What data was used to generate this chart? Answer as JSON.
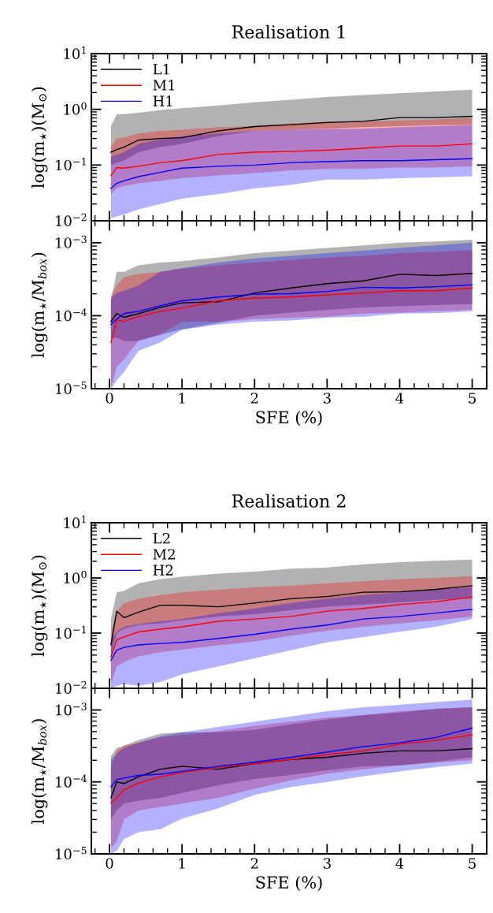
{
  "chart_data": [
    {
      "type": "line",
      "title": "Realisation 1",
      "ylabel": "log(m$_{⋆}$)(M$_{⊙}$)",
      "log": "y",
      "legend": "upper left",
      "tick_labels": "y",
      "xlim": [
        -0.25,
        5.2
      ],
      "xticks": [
        0,
        1,
        2,
        3,
        4,
        5
      ],
      "ylim": [
        0.01,
        10
      ],
      "yticks": [
        {
          "value": 0.01,
          "label": "10$^{−2}$"
        },
        {
          "value": 0.1,
          "label": "10$^{−1}$"
        },
        {
          "value": 1,
          "label": "10$^{0}$"
        },
        {
          "value": 10,
          "label": "10$^{1}$"
        }
      ],
      "x": [
        0.02,
        0.1,
        0.2,
        0.4,
        0.7,
        1,
        1.5,
        2,
        2.5,
        3,
        3.5,
        4,
        4.5,
        5
      ],
      "series": [
        {
          "name": "L1",
          "color": "#000000",
          "values": [
            0.17,
            0.19,
            0.21,
            0.28,
            0.3,
            0.31,
            0.41,
            0.49,
            0.53,
            0.58,
            0.61,
            0.71,
            0.71,
            0.75
          ],
          "lower": [
            0.1,
            0.11,
            0.12,
            0.17,
            0.21,
            0.24,
            0.33,
            0.41,
            0.43,
            0.45,
            0.48,
            0.5,
            0.52,
            0.53
          ],
          "upper": [
            0.5,
            0.82,
            0.82,
            0.87,
            0.97,
            1.05,
            1.17,
            1.34,
            1.49,
            1.66,
            1.81,
            1.95,
            2.1,
            2.25
          ]
        },
        {
          "name": "M1",
          "color": "#ff0000",
          "values": [
            0.065,
            0.09,
            0.088,
            0.095,
            0.11,
            0.12,
            0.155,
            0.17,
            0.175,
            0.185,
            0.2,
            0.22,
            0.22,
            0.24
          ],
          "lower": [
            0.03,
            0.038,
            0.042,
            0.047,
            0.052,
            0.058,
            0.065,
            0.072,
            0.08,
            0.085,
            0.085,
            0.09,
            0.09,
            0.095
          ],
          "upper": [
            0.21,
            0.3,
            0.31,
            0.37,
            0.41,
            0.43,
            0.48,
            0.5,
            0.56,
            0.6,
            0.61,
            0.63,
            0.66,
            0.7
          ]
        },
        {
          "name": "H1",
          "color": "#0000ff",
          "values": [
            0.038,
            0.047,
            0.052,
            0.062,
            0.074,
            0.088,
            0.095,
            0.1,
            0.11,
            0.115,
            0.12,
            0.12,
            0.125,
            0.13
          ],
          "lower": [
            0.011,
            0.012,
            0.013,
            0.016,
            0.02,
            0.025,
            0.03,
            0.038,
            0.044,
            0.055,
            0.055,
            0.058,
            0.06,
            0.063
          ],
          "upper": [
            0.14,
            0.155,
            0.17,
            0.24,
            0.29,
            0.33,
            0.37,
            0.41,
            0.43,
            0.44,
            0.45,
            0.48,
            0.5,
            0.52
          ]
        }
      ]
    },
    {
      "type": "line",
      "xlabel": "SFE (%)",
      "ylabel": "log(m$_{⋆}$/M$_{box}$)",
      "log": "y",
      "xlim": [
        -0.25,
        5.2
      ],
      "xticks": [
        0,
        1,
        2,
        3,
        4,
        5
      ],
      "ylim": [
        1e-05,
        0.002
      ],
      "yticks": [
        {
          "value": 1e-05,
          "label": "10$^{−5}$"
        },
        {
          "value": 0.0001,
          "label": "10$^{−4}$"
        },
        {
          "value": 0.001,
          "label": "10$^{−3}$"
        }
      ],
      "x": [
        0.02,
        0.1,
        0.2,
        0.4,
        0.7,
        1,
        1.5,
        2,
        2.5,
        3,
        3.5,
        4,
        4.5,
        5
      ],
      "series": [
        {
          "color": "#000000",
          "values": [
            8.3e-05,
            0.000107,
            9.5e-05,
            0.000107,
            0.00013,
            0.00015,
            0.000155,
            0.000205,
            0.00024,
            0.000275,
            0.0003,
            0.00037,
            0.000355,
            0.00038
          ],
          "lower": [
            5e-05,
            5e-05,
            4.5e-05,
            4.5e-05,
            5.5e-05,
            6.5e-05,
            8e-05,
            0.0001,
            0.00011,
            0.00012,
            0.00013,
            0.000135,
            0.00014,
            0.000145
          ],
          "upper": [
            0.00016,
            0.0004,
            0.0004,
            0.00049,
            0.000535,
            0.00056,
            0.00063,
            0.00072,
            0.00078,
            0.00085,
            0.00092,
            0.001,
            0.00104,
            0.0011
          ]
        },
        {
          "color": "#ff0000",
          "values": [
            4.3e-05,
            8.7e-05,
            8.4e-05,
            9.7e-05,
            0.000115,
            0.000127,
            0.00016,
            0.000175,
            0.00018,
            0.000193,
            0.000205,
            0.00022,
            0.00022,
            0.00024
          ],
          "lower": [
            1e-05,
            2e-05,
            2.5e-05,
            4.6e-05,
            5.5e-05,
            8.3e-05,
            8.3e-05,
            9e-05,
            9.4e-05,
            9.7e-05,
            0.000107,
            0.00011,
            0.000115,
            0.00012
          ],
          "upper": [
            0.00019,
            0.00026,
            0.00034,
            0.00037,
            0.0004,
            0.00044,
            0.00049,
            0.000535,
            0.00058,
            0.00063,
            0.00066,
            0.00072,
            0.00075,
            0.00079
          ]
        },
        {
          "color": "#0000ff",
          "values": [
            7.6e-05,
            9e-05,
            0.000107,
            0.000115,
            0.000137,
            0.00016,
            0.00018,
            0.000197,
            0.0002,
            0.000215,
            0.000245,
            0.00024,
            0.00025,
            0.000265
          ],
          "lower": [
            1e-05,
            1.3e-05,
            1.7e-05,
            3.3e-05,
            4.3e-05,
            6.4e-05,
            7.6e-05,
            8.3e-05,
            8.6e-05,
            9.4e-05,
            9.7e-05,
            0.000107,
            0.000108,
            0.000115
          ],
          "upper": [
            0.000175,
            0.000205,
            0.00022,
            0.00026,
            0.0004,
            0.00045,
            0.000535,
            0.00061,
            0.00066,
            0.00072,
            0.00078,
            0.00085,
            0.00092,
            0.001
          ]
        }
      ]
    },
    {
      "type": "line",
      "title": "Realisation 2",
      "ylabel": "log(m$_{⋆}$)(M$_{⊙}$)",
      "log": "y",
      "legend": "upper left",
      "tick_labels": "y",
      "xlim": [
        -0.25,
        5.2
      ],
      "xticks": [
        0,
        1,
        2,
        3,
        4,
        5
      ],
      "ylim": [
        0.01,
        10
      ],
      "yticks": [
        {
          "value": 0.01,
          "label": "10$^{−2}$"
        },
        {
          "value": 0.1,
          "label": "10$^{−1}$"
        },
        {
          "value": 1,
          "label": "10$^{0}$"
        },
        {
          "value": 10,
          "label": "10$^{1}$"
        }
      ],
      "x": [
        0.02,
        0.1,
        0.2,
        0.4,
        0.7,
        1,
        1.5,
        2,
        2.5,
        3,
        3.5,
        4,
        4.5,
        5
      ],
      "series": [
        {
          "name": "L2",
          "color": "#000000",
          "values": [
            0.061,
            0.25,
            0.19,
            0.24,
            0.32,
            0.32,
            0.3,
            0.35,
            0.42,
            0.46,
            0.55,
            0.56,
            0.62,
            0.72
          ],
          "lower": [
            0.04,
            0.1,
            0.12,
            0.14,
            0.15,
            0.17,
            0.2,
            0.22,
            0.26,
            0.3,
            0.33,
            0.36,
            0.4,
            0.42
          ],
          "upper": [
            0.18,
            0.55,
            0.58,
            0.8,
            0.95,
            1.05,
            1.2,
            1.3,
            1.47,
            1.55,
            1.77,
            1.93,
            2.04,
            2.15
          ]
        },
        {
          "name": "M2",
          "color": "#ff0000",
          "values": [
            0.037,
            0.076,
            0.085,
            0.105,
            0.118,
            0.13,
            0.164,
            0.18,
            0.2,
            0.25,
            0.28,
            0.33,
            0.37,
            0.45
          ],
          "lower": [
            0.012,
            0.025,
            0.03,
            0.038,
            0.045,
            0.05,
            0.06,
            0.07,
            0.09,
            0.11,
            0.13,
            0.15,
            0.17,
            0.2
          ],
          "upper": [
            0.1,
            0.25,
            0.35,
            0.42,
            0.49,
            0.55,
            0.61,
            0.68,
            0.72,
            0.8,
            0.87,
            0.95,
            1.0,
            1.08
          ]
        },
        {
          "name": "H2",
          "color": "#0000ff",
          "values": [
            0.032,
            0.049,
            0.055,
            0.061,
            0.065,
            0.068,
            0.08,
            0.095,
            0.118,
            0.14,
            0.18,
            0.2,
            0.23,
            0.27
          ],
          "lower": [
            0.01,
            0.011,
            0.012,
            0.011,
            0.013,
            0.018,
            0.025,
            0.035,
            0.049,
            0.068,
            0.085,
            0.106,
            0.13,
            0.18
          ],
          "upper": [
            0.076,
            0.106,
            0.13,
            0.146,
            0.164,
            0.18,
            0.23,
            0.28,
            0.35,
            0.42,
            0.49,
            0.55,
            0.61,
            0.68
          ]
        }
      ]
    },
    {
      "type": "line",
      "xlabel": "SFE (%)",
      "ylabel": "log(m$_{⋆}$/M$_{box}$)",
      "log": "y",
      "xlim": [
        -0.25,
        5.2
      ],
      "xticks": [
        0,
        1,
        2,
        3,
        4,
        5
      ],
      "ylim": [
        1e-05,
        0.002
      ],
      "yticks": [
        {
          "value": 1e-05,
          "label": "10$^{−5}$"
        },
        {
          "value": 0.0001,
          "label": "10$^{−4}$"
        },
        {
          "value": 0.001,
          "label": "10$^{−3}$"
        }
      ],
      "x": [
        0.02,
        0.1,
        0.2,
        0.4,
        0.7,
        1,
        1.5,
        2,
        2.5,
        3,
        3.5,
        4,
        4.5,
        5
      ],
      "series": [
        {
          "color": "#000000",
          "values": [
            6e-05,
            0.0001,
            9.5e-05,
            0.000118,
            0.00015,
            0.000165,
            0.00015,
            0.00018,
            0.000205,
            0.00022,
            0.00025,
            0.00027,
            0.00027,
            0.00029
          ],
          "lower": [
            3e-05,
            4e-05,
            5e-05,
            5.5e-05,
            6e-05,
            7e-05,
            9e-05,
            0.00011,
            0.000125,
            0.000145,
            0.000165,
            0.00017,
            0.00019,
            0.00022
          ],
          "upper": [
            0.00023,
            0.000295,
            0.00032,
            0.00038,
            0.00047,
            0.00049,
            0.00049,
            0.00053,
            0.00063,
            0.00074,
            0.00085,
            0.00092,
            0.00104,
            0.00109
          ]
        },
        {
          "color": "#ff0000",
          "values": [
            5.1e-05,
            6e-05,
            7.8e-05,
            9.6e-05,
            0.000118,
            0.000134,
            0.00016,
            0.00018,
            0.000205,
            0.00024,
            0.00027,
            0.000335,
            0.00038,
            0.00045
          ],
          "lower": [
            1.2e-05,
            1.5e-05,
            3e-05,
            4e-05,
            4.5e-05,
            5e-05,
            6e-05,
            8e-05,
            0.000105,
            0.00013,
            0.00015,
            0.00017,
            0.000185,
            0.0002
          ],
          "upper": [
            0.000165,
            0.00027,
            0.00032,
            0.00035,
            0.000415,
            0.00045,
            0.00051,
            0.000605,
            0.00069,
            0.00078,
            0.00085,
            0.00096,
            0.00104,
            0.00109
          ]
        },
        {
          "color": "#0000ff",
          "values": [
            8.5e-05,
            0.000108,
            0.000113,
            0.000123,
            0.000128,
            0.00014,
            0.000165,
            0.000188,
            0.00022,
            0.00026,
            0.00031,
            0.00035,
            0.000415,
            0.00056
          ],
          "lower": [
            1e-05,
            1.1e-05,
            1.6e-05,
            2e-05,
            2.2e-05,
            3.1e-05,
            4.3e-05,
            6.6e-05,
            8.5e-05,
            0.0001,
            0.00012,
            0.00014,
            0.00016,
            0.00018
          ],
          "upper": [
            0.0002,
            0.00025,
            0.000295,
            0.00035,
            0.00043,
            0.00049,
            0.00058,
            0.00069,
            0.00081,
            0.00096,
            0.00109,
            0.00118,
            0.00129,
            0.0014
          ]
        }
      ]
    }
  ]
}
